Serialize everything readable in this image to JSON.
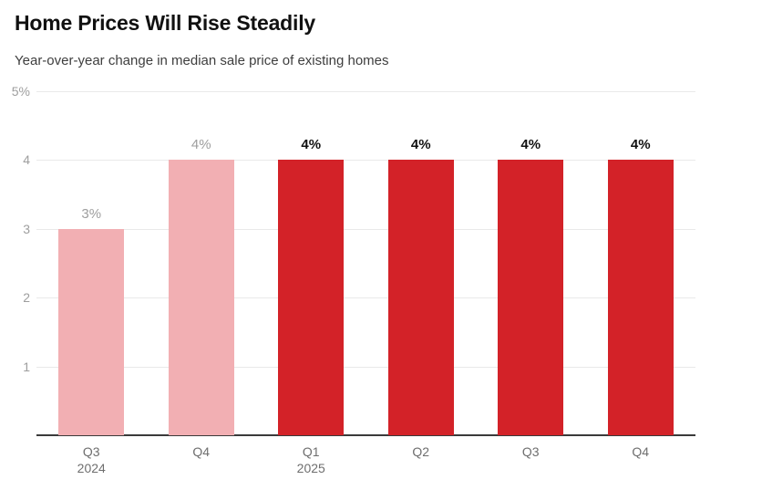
{
  "title": "Home Prices Will Rise Steadily",
  "subtitle": "Year-over-year change in median sale price of existing homes",
  "colors": {
    "title": "#111111",
    "subtitle": "#3e3e3e",
    "grid": "#e9e9e9",
    "axis": "#3a3a3a",
    "y_tick": "#9e9e9e",
    "x_tick": "#6e6e6e",
    "series_actual": "#f2afb3",
    "series_forecast": "#d32228",
    "value_label_actual": "#9e9e9e",
    "value_label_forecast": "#111111"
  },
  "chart_data": {
    "type": "bar",
    "title": "Home Prices Will Rise Steadily",
    "subtitle": "Year-over-year change in median sale price of existing homes",
    "ylabel": "",
    "xlabel": "",
    "ylim": [
      0,
      5
    ],
    "grid": true,
    "yticks": [
      {
        "value": 5,
        "label": "5%"
      },
      {
        "value": 4,
        "label": "4"
      },
      {
        "value": 3,
        "label": "3"
      },
      {
        "value": 2,
        "label": "2"
      },
      {
        "value": 1,
        "label": "1"
      }
    ],
    "bars": [
      {
        "quarter": "Q3",
        "year": "2024",
        "value": 3,
        "label": "3%",
        "series": "actual"
      },
      {
        "quarter": "Q4",
        "year": "",
        "value": 4,
        "label": "4%",
        "series": "actual"
      },
      {
        "quarter": "Q1",
        "year": "2025",
        "value": 4,
        "label": "4%",
        "series": "forecast"
      },
      {
        "quarter": "Q2",
        "year": "",
        "value": 4,
        "label": "4%",
        "series": "forecast"
      },
      {
        "quarter": "Q3",
        "year": "",
        "value": 4,
        "label": "4%",
        "series": "forecast"
      },
      {
        "quarter": "Q4",
        "year": "",
        "value": 4,
        "label": "4%",
        "series": "forecast"
      }
    ]
  }
}
